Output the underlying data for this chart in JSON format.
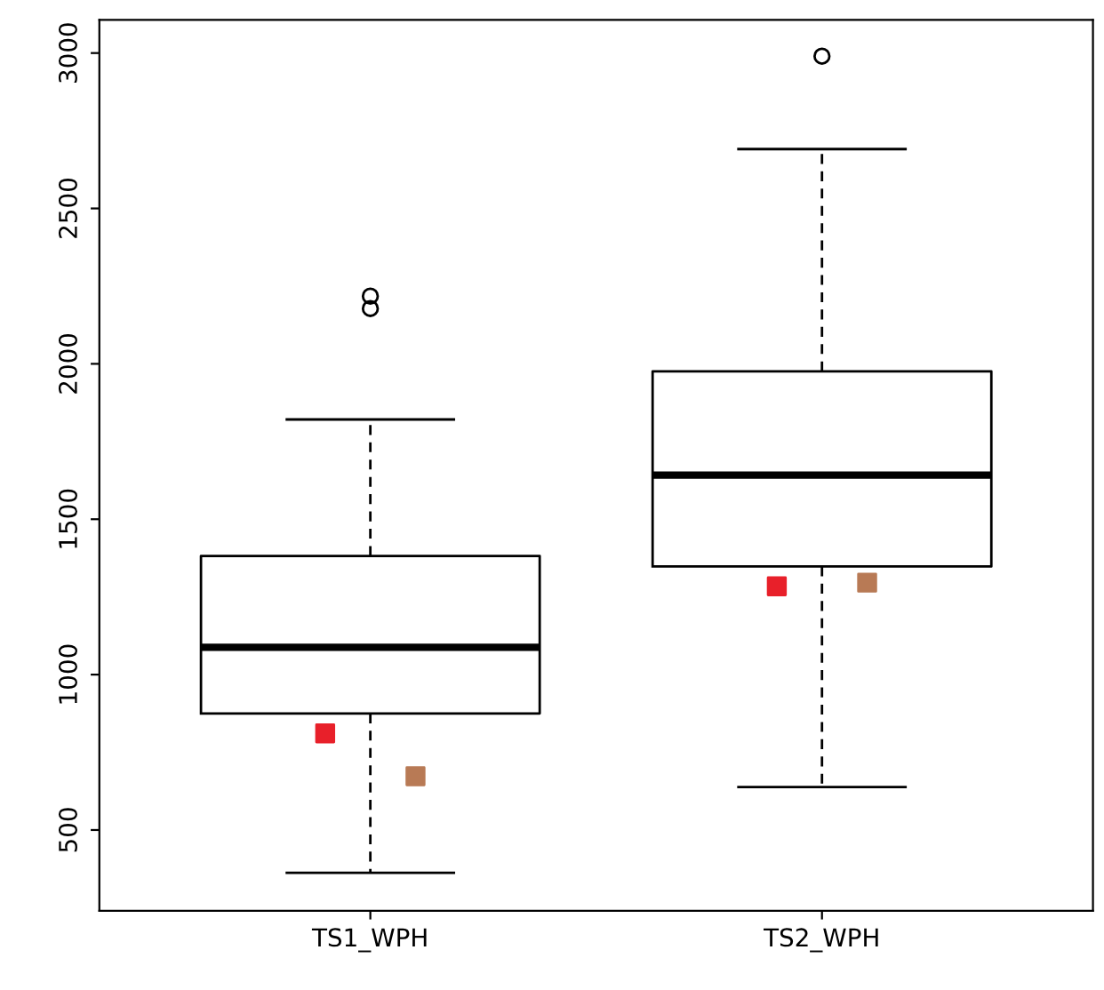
{
  "chart_data": {
    "type": "box",
    "categories": [
      "TS1_WPH",
      "TS2_WPH"
    ],
    "boxes": [
      {
        "low": 362,
        "q1": 875,
        "median": 1088,
        "q3": 1382,
        "high": 1821,
        "outliers": [
          2218,
          2178
        ]
      },
      {
        "low": 638,
        "q1": 1348,
        "median": 1642,
        "q3": 1976,
        "high": 2691,
        "outliers": [
          2990
        ]
      }
    ],
    "series": [
      {
        "type": "scatter",
        "x": [
          "TS1_WPH",
          "TS2_WPH"
        ],
        "values": [
          811,
          1284
        ],
        "color": "#e8202a",
        "marker": "square"
      },
      {
        "type": "scatter",
        "x": [
          "TS1_WPH",
          "TS2_WPH"
        ],
        "values": [
          673,
          1296
        ],
        "color": "#b87a55",
        "marker": "square"
      }
    ],
    "ylim": [
      240,
      3107
    ],
    "yticks": [
      500,
      1000,
      1500,
      2000,
      2500,
      3000
    ],
    "grid": false,
    "legend": false
  }
}
